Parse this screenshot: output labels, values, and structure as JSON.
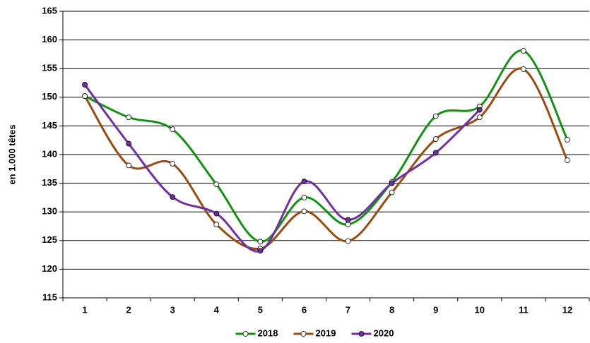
{
  "chart_data": {
    "type": "line",
    "y_label": "en 1.000 têtes",
    "categories": [
      "1",
      "2",
      "3",
      "4",
      "5",
      "6",
      "7",
      "8",
      "9",
      "10",
      "11",
      "12"
    ],
    "series": [
      {
        "name": "2018",
        "color": "#129212",
        "marker_fill": "#ffffff",
        "values": [
          150.2,
          146.5,
          144.4,
          134.8,
          124.8,
          132.5,
          127.8,
          135.2,
          146.7,
          148.4,
          158.1,
          142.6
        ]
      },
      {
        "name": "2019",
        "color": "#994c11",
        "marker_fill": "#ffffff",
        "values": [
          150.2,
          138.1,
          138.4,
          127.8,
          123.6,
          130.1,
          124.9,
          133.4,
          142.7,
          146.5,
          154.9,
          139.0
        ]
      },
      {
        "name": "2020",
        "color": "#7030a0",
        "marker_fill": "#7030a0",
        "values": [
          152.2,
          141.9,
          132.6,
          129.7,
          123.2,
          135.3,
          128.6,
          135.0,
          140.3,
          147.8,
          null,
          null
        ]
      }
    ],
    "ylim": [
      115,
      165
    ],
    "yticks": [
      115,
      120,
      125,
      130,
      135,
      140,
      145,
      150,
      155,
      160,
      165
    ],
    "grid": true,
    "smooth": true,
    "legend": "bottom"
  }
}
